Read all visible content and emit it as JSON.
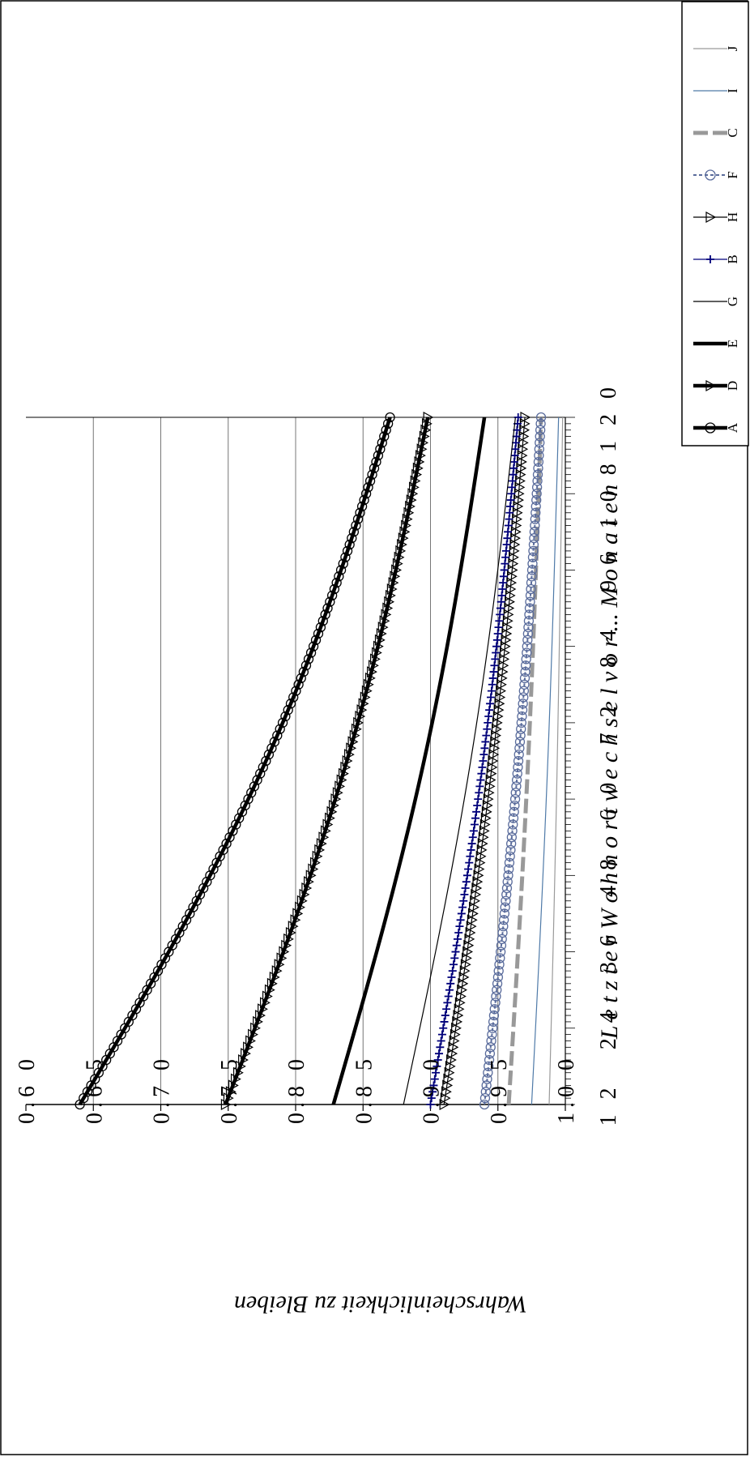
{
  "chart_data": {
    "type": "line",
    "title": "",
    "xlabel": "L e t z t e r   W o h n o r t w e c h s e l   v o r  ...  M o n a t e n",
    "ylabel": "Wahrscheinlichkeit zu Bleiben",
    "xlim": [
      12,
      120
    ],
    "ylim": [
      0.6,
      1.0
    ],
    "x_ticks": [
      12,
      24,
      36,
      48,
      60,
      72,
      84,
      96,
      108,
      120
    ],
    "x_tick_labels": [
      "1 2",
      "2 4",
      "3 6",
      "4 8",
      "6 0",
      "7 2",
      "8 4",
      "9 6",
      "1 0 8",
      "1 2 0"
    ],
    "y_ticks": [
      0.6,
      0.65,
      0.7,
      0.75,
      0.8,
      0.85,
      0.9,
      0.95,
      1.0
    ],
    "y_tick_labels": [
      "0.6 0",
      "0.6 5",
      "0.7 0",
      "0.7 5",
      "0.8 0",
      "0.8 5",
      "0.9 0",
      "0.9 5",
      "1.0 0"
    ],
    "grid": true,
    "legend_position": "right",
    "series": [
      {
        "name": "J",
        "start": 0.988,
        "end": 0.998,
        "color": "#9a9a9a",
        "style": "thin",
        "marker": "none"
      },
      {
        "name": "I",
        "start": 0.975,
        "end": 0.995,
        "color": "#4f7aa8",
        "style": "thin",
        "marker": "none"
      },
      {
        "name": "C",
        "start": 0.958,
        "end": 0.982,
        "color": "#999999",
        "style": "dashed-thick",
        "marker": "none"
      },
      {
        "name": "F",
        "start": 0.94,
        "end": 0.982,
        "color": "#5a6c9c",
        "style": "dotted",
        "marker": "circle"
      },
      {
        "name": "H",
        "start": 0.91,
        "end": 0.97,
        "color": "#000000",
        "style": "thin",
        "marker": "triangle"
      },
      {
        "name": "B",
        "start": 0.9,
        "end": 0.965,
        "color": "#00007a",
        "style": "thin",
        "marker": "plus"
      },
      {
        "name": "G",
        "start": 0.88,
        "end": 0.963,
        "color": "#000000",
        "style": "thin",
        "marker": "none"
      },
      {
        "name": "E",
        "start": 0.828,
        "end": 0.94,
        "color": "#000000",
        "style": "thick",
        "marker": "none"
      },
      {
        "name": "D",
        "start": 0.748,
        "end": 0.898,
        "color": "#000000",
        "style": "thick",
        "marker": "triangle"
      },
      {
        "name": "A",
        "start": 0.64,
        "end": 0.87,
        "color": "#000000",
        "style": "thick",
        "marker": "circle"
      }
    ]
  }
}
